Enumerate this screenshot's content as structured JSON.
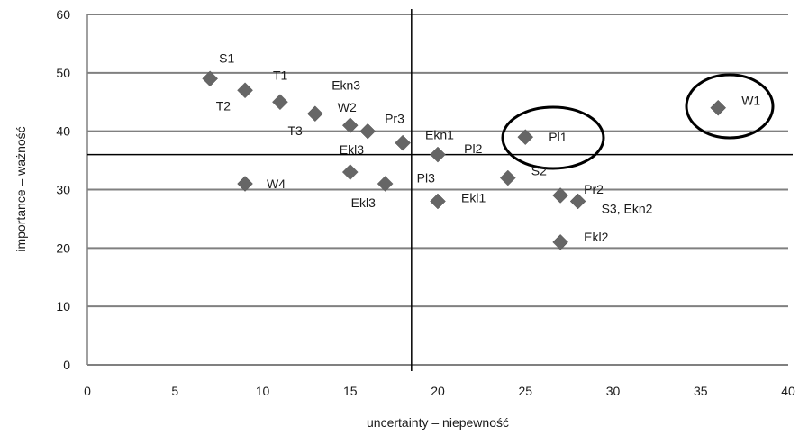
{
  "chart_data": {
    "type": "scatter",
    "title": "",
    "xlabel": "uncertainty – niepewność",
    "ylabel": "importance – ważność",
    "xlim": [
      0,
      40
    ],
    "ylim": [
      0,
      60
    ],
    "xticks": [
      0,
      5,
      10,
      15,
      20,
      25,
      30,
      35,
      40
    ],
    "yticks": [
      0,
      10,
      20,
      30,
      40,
      50,
      60
    ],
    "grid": "horizontal",
    "marker": "diamond",
    "marker_color": "#666666",
    "reference_lines": {
      "x": 18.5,
      "y": 36
    },
    "points": [
      {
        "x": 7,
        "y": 49,
        "label": "S1"
      },
      {
        "x": 9,
        "y": 47,
        "label": "T2"
      },
      {
        "x": 11,
        "y": 45,
        "label": "T1"
      },
      {
        "x": 13,
        "y": 43,
        "label": "T3"
      },
      {
        "x": 15,
        "y": 41,
        "label": "W2"
      },
      {
        "x": 16,
        "y": 40,
        "label": "Ekn3"
      },
      {
        "x": 18,
        "y": 38,
        "label": "Pr3"
      },
      {
        "x": 20,
        "y": 36,
        "label": "Ekn1"
      },
      {
        "x": 25,
        "y": 39,
        "label": "Pl1"
      },
      {
        "x": 36,
        "y": 44,
        "label": "W1"
      },
      {
        "x": 9,
        "y": 31,
        "label": "W4"
      },
      {
        "x": 15,
        "y": 33,
        "label": "Ekl3"
      },
      {
        "x": 17,
        "y": 31,
        "label": "Ekl3"
      },
      {
        "x": 20,
        "y": 28,
        "label": "Ekl1"
      },
      {
        "x": 24,
        "y": 32,
        "label": "S2"
      },
      {
        "x": 27,
        "y": 29,
        "label": "Pr2"
      },
      {
        "x": 28,
        "y": 28,
        "label": "S3, Ekn2"
      },
      {
        "x": 27,
        "y": 21,
        "label": "Ekl2"
      }
    ],
    "extra_labels": [
      {
        "text": "Pl3",
        "x": 18.8,
        "y": 32
      },
      {
        "text": "Pl2",
        "x": 21.5,
        "y": 37
      }
    ],
    "highlighted": [
      "Pl1",
      "W1"
    ]
  }
}
